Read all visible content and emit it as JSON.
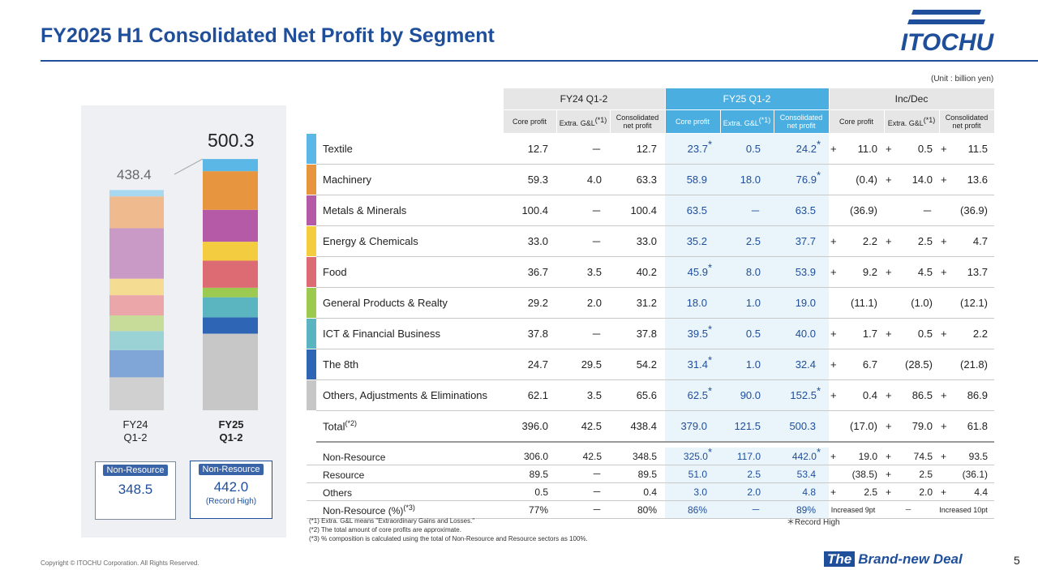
{
  "title": "FY2025 H1 Consolidated Net Profit by Segment",
  "logo_text": "ITOCHU",
  "unit": "(Unit : billion yen)",
  "colors": {
    "accent": "#1f4e9a",
    "fy25_header": "#4aaee0",
    "segments": [
      "#5bb8e6",
      "#e8953f",
      "#b55aa6",
      "#f4cc3f",
      "#dd6b73",
      "#9cc94f",
      "#5bb5c1",
      "#2f65b5",
      "#c7c7c7"
    ],
    "segments_light": [
      "#a8d8f0",
      "#efba8e",
      "#c99ac6",
      "#f4dc93",
      "#eba6aa",
      "#c7dc98",
      "#9ad2d6",
      "#7fa6d6",
      "#d0d0d0"
    ]
  },
  "chart_data": {
    "type": "bar",
    "stacked": true,
    "categories": [
      "FY24 Q1-2",
      "FY25 Q1-2"
    ],
    "totals": [
      "438.4",
      "500.3"
    ],
    "series": [
      {
        "name": "Others, Adjustments & Eliminations",
        "values": [
          65.6,
          152.5
        ]
      },
      {
        "name": "The 8th",
        "values": [
          54.2,
          32.4
        ]
      },
      {
        "name": "ICT & Financial Business",
        "values": [
          37.8,
          40.0
        ]
      },
      {
        "name": "General Products & Realty",
        "values": [
          31.2,
          19.0
        ]
      },
      {
        "name": "Food",
        "values": [
          40.2,
          53.9
        ]
      },
      {
        "name": "Energy & Chemicals",
        "values": [
          33.0,
          37.7
        ]
      },
      {
        "name": "Metals & Minerals",
        "values": [
          100.4,
          63.5
        ]
      },
      {
        "name": "Machinery",
        "values": [
          63.3,
          76.9
        ]
      },
      {
        "name": "Textile",
        "values": [
          12.7,
          24.2
        ]
      }
    ],
    "xlabels": [
      [
        "FY24",
        "Q1-2"
      ],
      [
        "FY25",
        "Q1-2"
      ]
    ],
    "nonresource": [
      {
        "badge": "Non-Resource",
        "value": "348.5",
        "sub": ""
      },
      {
        "badge": "Non-Resource",
        "value": "442.0",
        "sub": "(Record High)"
      }
    ]
  },
  "table": {
    "group_headers": [
      "FY24 Q1-2",
      "FY25 Q1-2",
      "Inc/Dec"
    ],
    "sub_headers": [
      [
        "Core profit",
        "Extra. G&L",
        "(*1)",
        "Consolidated net profit"
      ],
      [
        "Core profit",
        "Extra. G&L",
        "(*1)",
        "Consolidated net profit"
      ],
      [
        "Core profit",
        "Extra. G&L",
        "(*1)",
        "Consolidated net profit"
      ]
    ],
    "rows": [
      {
        "name": "Textile",
        "v": [
          "12.7",
          "－",
          "12.7",
          "23.7",
          "0.5",
          "24.2"
        ],
        "star": [
          true,
          false,
          true
        ],
        "inc": [
          [
            "+",
            "11.0"
          ],
          [
            "+",
            "0.5"
          ],
          [
            "+",
            "11.5"
          ]
        ]
      },
      {
        "name": "Machinery",
        "v": [
          "59.3",
          "4.0",
          "63.3",
          "58.9",
          "18.0",
          "76.9"
        ],
        "star": [
          false,
          false,
          true
        ],
        "inc": [
          [
            "",
            "(0.4)"
          ],
          [
            "+",
            "14.0"
          ],
          [
            "+",
            "13.6"
          ]
        ]
      },
      {
        "name": "Metals & Minerals",
        "v": [
          "100.4",
          "－",
          "100.4",
          "63.5",
          "－",
          "63.5"
        ],
        "star": [
          false,
          false,
          false
        ],
        "inc": [
          [
            "",
            "(36.9)"
          ],
          [
            "",
            "－"
          ],
          [
            "",
            "(36.9)"
          ]
        ]
      },
      {
        "name": "Energy & Chemicals",
        "v": [
          "33.0",
          "－",
          "33.0",
          "35.2",
          "2.5",
          "37.7"
        ],
        "star": [
          false,
          false,
          false
        ],
        "inc": [
          [
            "+",
            "2.2"
          ],
          [
            "+",
            "2.5"
          ],
          [
            "+",
            "4.7"
          ]
        ]
      },
      {
        "name": "Food",
        "v": [
          "36.7",
          "3.5",
          "40.2",
          "45.9",
          "8.0",
          "53.9"
        ],
        "star": [
          true,
          false,
          false
        ],
        "inc": [
          [
            "+",
            "9.2"
          ],
          [
            "+",
            "4.5"
          ],
          [
            "+",
            "13.7"
          ]
        ]
      },
      {
        "name": "General Products & Realty",
        "v": [
          "29.2",
          "2.0",
          "31.2",
          "18.0",
          "1.0",
          "19.0"
        ],
        "star": [
          false,
          false,
          false
        ],
        "inc": [
          [
            "",
            "(11.1)"
          ],
          [
            "",
            "(1.0)"
          ],
          [
            "",
            "(12.1)"
          ]
        ]
      },
      {
        "name": "ICT & Financial Business",
        "v": [
          "37.8",
          "－",
          "37.8",
          "39.5",
          "0.5",
          "40.0"
        ],
        "star": [
          true,
          false,
          false
        ],
        "inc": [
          [
            "+",
            "1.7"
          ],
          [
            "+",
            "0.5"
          ],
          [
            "+",
            "2.2"
          ]
        ]
      },
      {
        "name": "The 8th",
        "v": [
          "24.7",
          "29.5",
          "54.2",
          "31.4",
          "1.0",
          "32.4"
        ],
        "star": [
          true,
          false,
          false
        ],
        "inc": [
          [
            "+",
            "6.7"
          ],
          [
            "",
            "(28.5)"
          ],
          [
            "",
            "(21.8)"
          ]
        ]
      },
      {
        "name": "Others, Adjustments & Eliminations",
        "v": [
          "62.1",
          "3.5",
          "65.6",
          "62.5",
          "90.0",
          "152.5"
        ],
        "star": [
          true,
          false,
          true
        ],
        "inc": [
          [
            "+",
            "0.4"
          ],
          [
            "+",
            "86.5"
          ],
          [
            "+",
            "86.9"
          ]
        ]
      }
    ],
    "total": {
      "name": "Total",
      "note": "(*2)",
      "v": [
        "396.0",
        "42.5",
        "438.4",
        "379.0",
        "121.5",
        "500.3"
      ],
      "inc": [
        [
          "",
          "(17.0)"
        ],
        [
          "+",
          "79.0"
        ],
        [
          "+",
          "61.8"
        ]
      ]
    },
    "summary": [
      {
        "name": "Non-Resource",
        "note": "",
        "v": [
          "306.0",
          "42.5",
          "348.5",
          "325.0",
          "117.0",
          "442.0"
        ],
        "star": [
          true,
          false,
          true
        ],
        "inc": [
          [
            "+",
            "19.0"
          ],
          [
            "+",
            "74.5"
          ],
          [
            "+",
            "93.5"
          ]
        ]
      },
      {
        "name": "Resource",
        "note": "",
        "v": [
          "89.5",
          "－",
          "89.5",
          "51.0",
          "2.5",
          "53.4"
        ],
        "star": [
          false,
          false,
          false
        ],
        "inc": [
          [
            "",
            "(38.5)"
          ],
          [
            "+",
            "2.5"
          ],
          [
            "",
            "(36.1)"
          ]
        ]
      },
      {
        "name": "Others",
        "note": "",
        "v": [
          "0.5",
          "－",
          "0.4",
          "3.0",
          "2.0",
          "4.8"
        ],
        "star": [
          false,
          false,
          false
        ],
        "inc": [
          [
            "+",
            "2.5"
          ],
          [
            "+",
            "2.0"
          ],
          [
            "+",
            "4.4"
          ]
        ]
      },
      {
        "name": "Non-Resource (%)",
        "note": "(*3)",
        "v": [
          "77%",
          "－",
          "80%",
          "86%",
          "－",
          "89%"
        ],
        "star": [
          false,
          false,
          false
        ],
        "inc": [
          [
            "",
            "Increased 9pt"
          ],
          [
            "",
            "－"
          ],
          [
            "",
            "Increased 10pt"
          ]
        ]
      }
    ]
  },
  "notes": [
    "(*1) Extra. G&L means \"Extraordinary Gains and Losses.\"",
    "(*2) The total amount of core profits are approximate.",
    "(*3) % composition is calculated using the total of Non-Resource and Resource sectors as 100%."
  ],
  "star_symbol": "*",
  "record_note": "＊Record High",
  "copyright": "Copyright © ITOCHU Corporation. All Rights Reserved.",
  "brand": {
    "the": "The",
    "rest": "Brand-new Deal"
  },
  "page_number": "5"
}
